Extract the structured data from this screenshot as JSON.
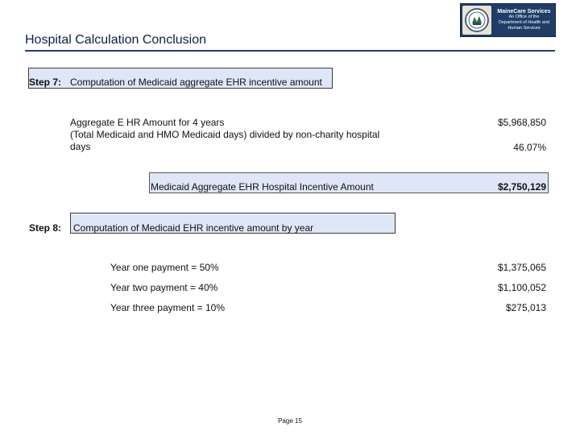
{
  "header": {
    "title": "Hospital Calculation Conclusion",
    "logo": {
      "brand": "MaineCare Services",
      "line1": "An Office of the",
      "line2": "Department of Health and Human Services"
    }
  },
  "step7": {
    "label": "Step 7:",
    "text": "Computation of Medicaid aggregate EHR incentive amount",
    "items": [
      {
        "label": "Aggregate E HR Amount for 4 years",
        "value": "$5,968,850"
      },
      {
        "label": "(Total Medicaid and HMO Medicaid days) divided by non-charity hospital days",
        "value": "46.07%"
      }
    ],
    "total": {
      "label": "Medicaid Aggregate EHR Hospital Incentive Amount",
      "value": "$2,750,129"
    }
  },
  "step8": {
    "label": "Step 8:",
    "text": "Computation of Medicaid EHR incentive amount by year",
    "payments": [
      {
        "label": "Year one payment = 50%",
        "value": "$1,375,065"
      },
      {
        "label": "Year two payment = 40%",
        "value": "$1,100,052"
      },
      {
        "label": "Year three payment = 10%",
        "value": "$275,013"
      }
    ]
  },
  "footer": {
    "page": "Page 15"
  }
}
